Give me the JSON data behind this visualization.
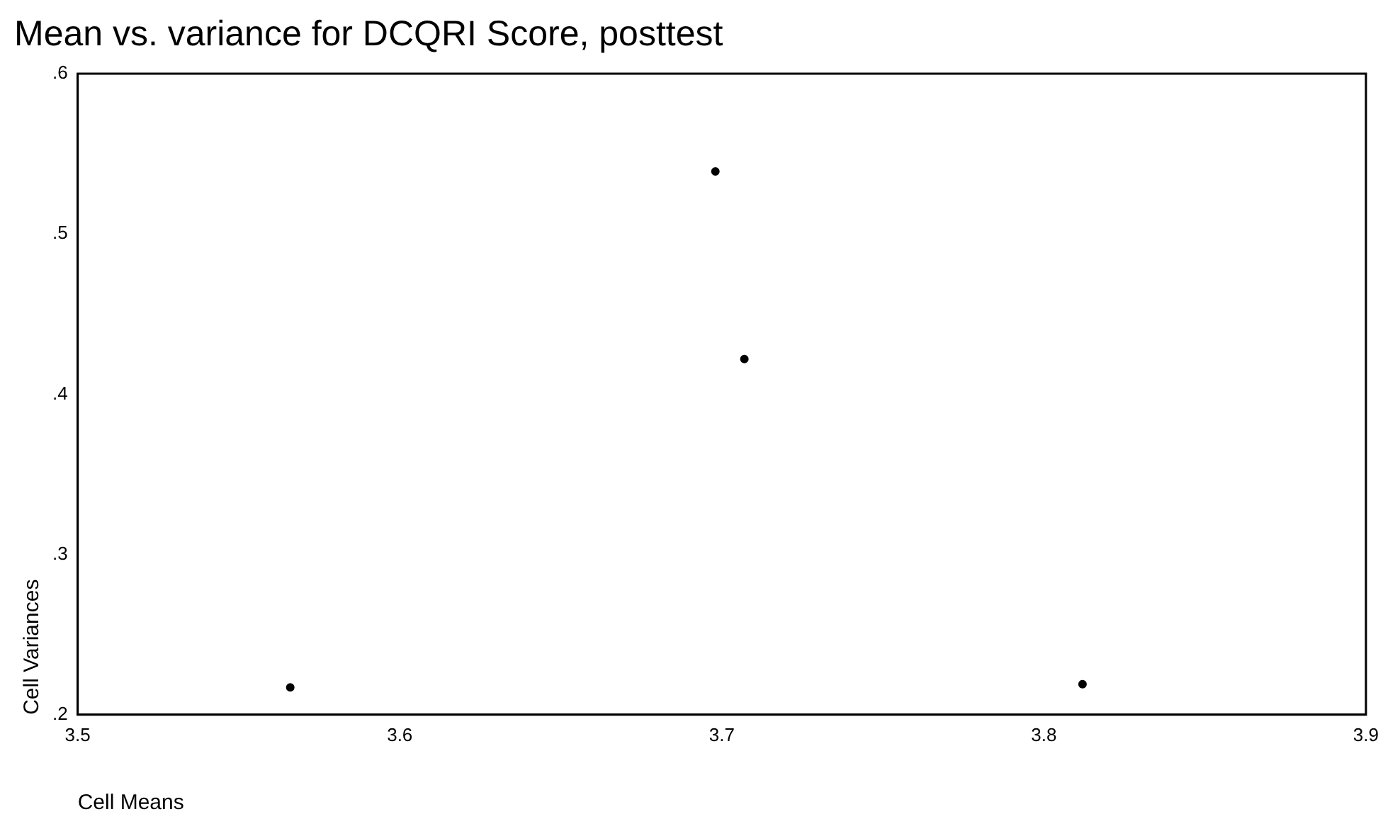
{
  "chart_data": {
    "type": "scatter",
    "title": "Mean vs. variance for DCQRI Score, posttest",
    "xlabel": "Cell Means",
    "ylabel": "Cell Variances",
    "x": [
      3.566,
      3.698,
      3.707,
      3.812
    ],
    "values": [
      0.217,
      0.539,
      0.422,
      0.219
    ],
    "color": "#000000",
    "marker": "circle",
    "xlim": [
      3.5,
      3.9
    ],
    "xticks": [
      3.5,
      3.6,
      3.7,
      3.8,
      3.9
    ],
    "ylim": [
      0.2,
      0.6
    ],
    "yticks": [
      {
        "value": 0.2,
        "label": ".2"
      },
      {
        "value": 0.3,
        "label": ".3"
      },
      {
        "value": 0.4,
        "label": ".4"
      },
      {
        "value": 0.5,
        "label": ".5"
      },
      {
        "value": 0.6,
        "label": ".6"
      }
    ],
    "grid": false,
    "legend": false
  }
}
